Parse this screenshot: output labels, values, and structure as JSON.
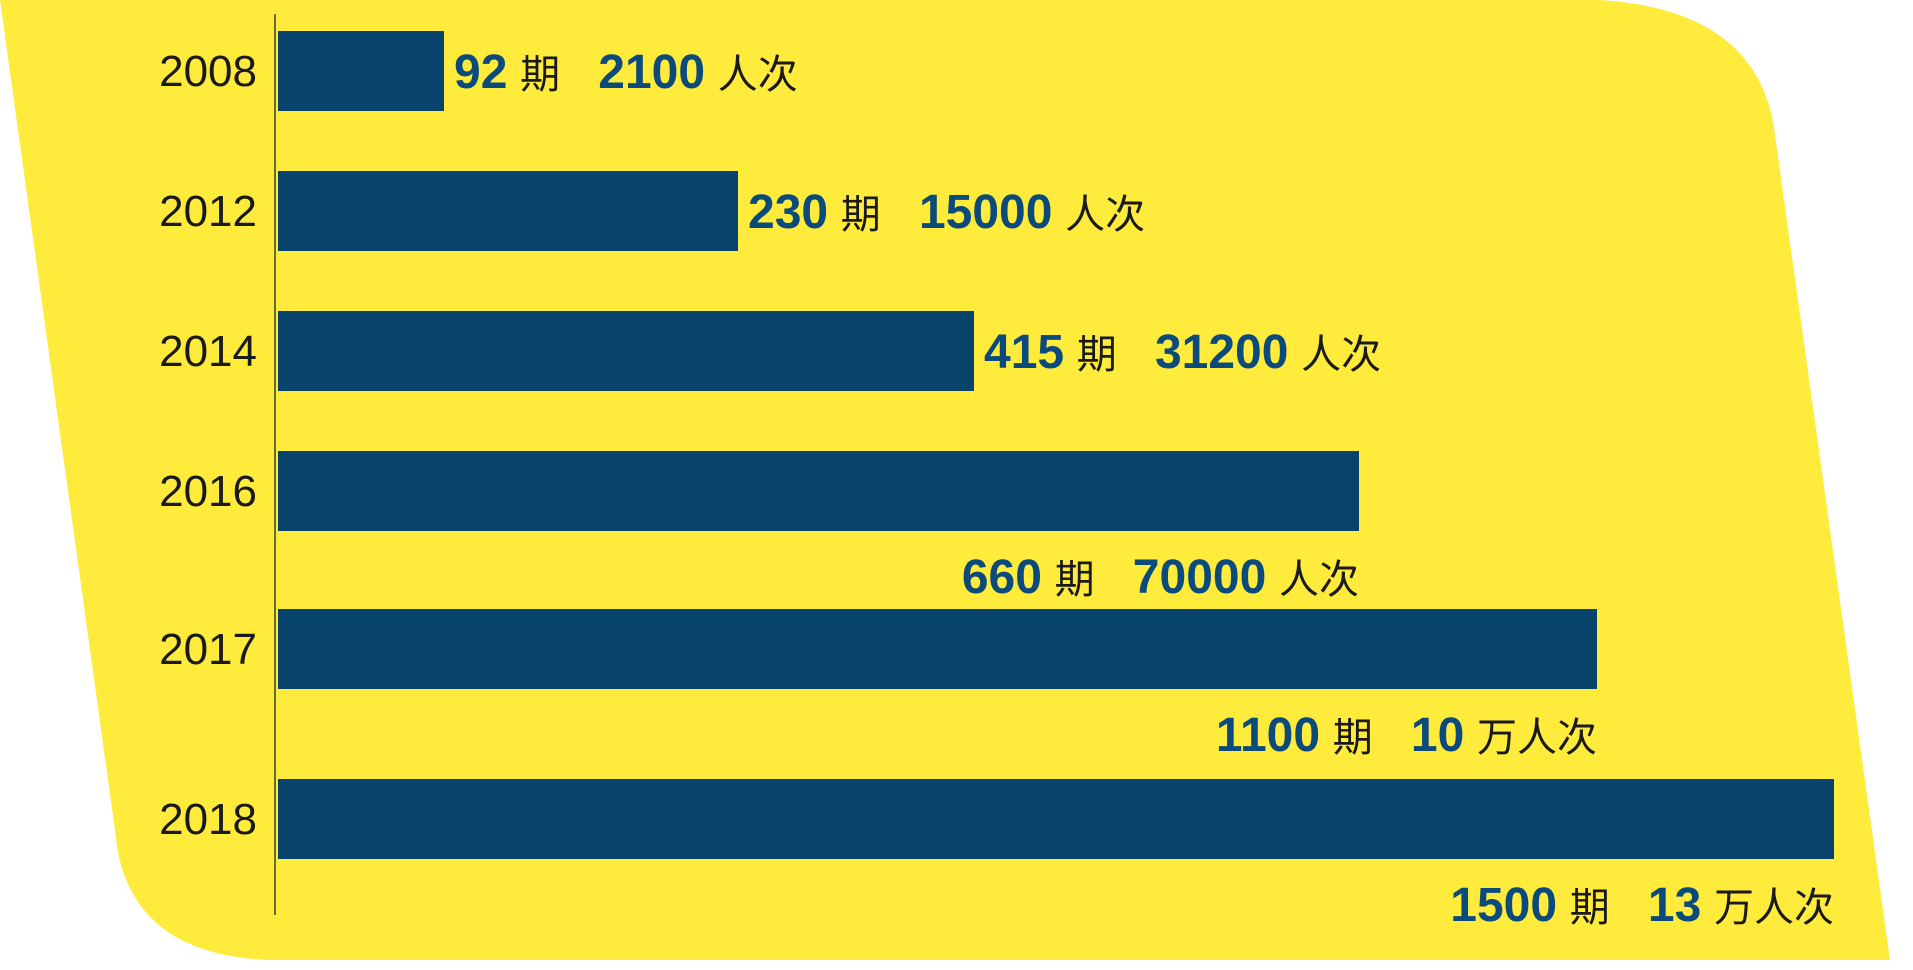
{
  "chart_data": {
    "type": "bar",
    "orientation": "horizontal",
    "categories": [
      "2008",
      "2012",
      "2014",
      "2016",
      "2017",
      "2018"
    ],
    "series": [
      {
        "values": [
          92,
          230,
          415,
          660,
          1100,
          1500
        ]
      }
    ],
    "labels": [
      {
        "periods": "92",
        "period_unit": "期",
        "people": "2100",
        "people_unit": "人次"
      },
      {
        "periods": "230",
        "period_unit": "期",
        "people": "15000",
        "people_unit": "人次"
      },
      {
        "periods": "415",
        "period_unit": "期",
        "people": "31200",
        "people_unit": "人次"
      },
      {
        "periods": "660",
        "period_unit": "期",
        "people": "70000",
        "people_unit": "人次"
      },
      {
        "periods": "1100",
        "period_unit": "期",
        "people": "10",
        "people_unit": "万人次"
      },
      {
        "periods": "1500",
        "period_unit": "期",
        "people": "13",
        "people_unit": "万人次"
      }
    ],
    "title": "",
    "xlabel": "",
    "ylabel": "",
    "grid": false,
    "legend": "none",
    "colors": {
      "background_shape": "#ffeb3b",
      "bar": "#07436b",
      "value_text": "#0a4a7c",
      "axis": "#6b6b3a"
    }
  }
}
